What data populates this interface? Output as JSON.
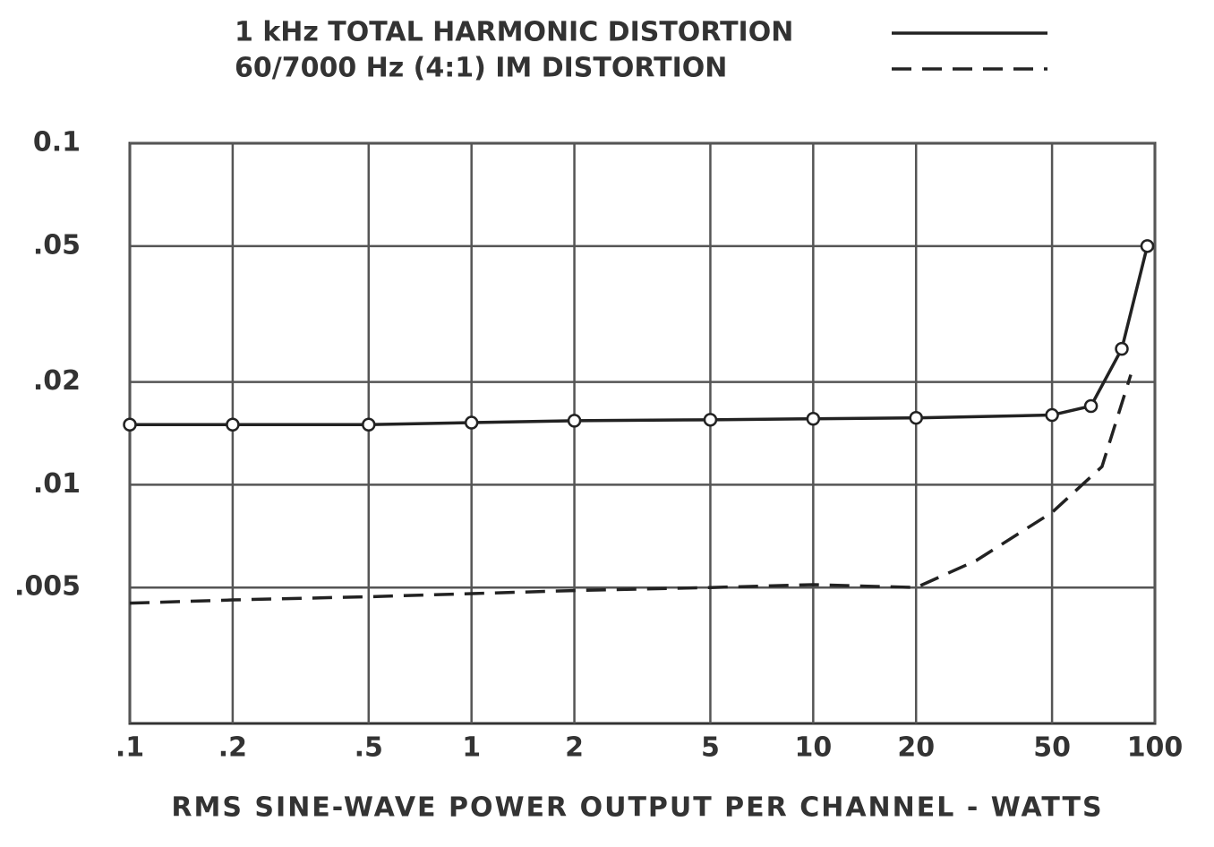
{
  "chart_data": {
    "type": "line",
    "x_label": "RMS SINE-WAVE POWER OUTPUT PER CHANNEL - WATTS",
    "xlog": true,
    "ylog": true,
    "grid": true,
    "xlim": [
      0.1,
      100
    ],
    "ylim": [
      0.002,
      0.1
    ],
    "xticks": [
      {
        "value": 0.1,
        "label": ".1"
      },
      {
        "value": 0.2,
        "label": ".2"
      },
      {
        "value": 0.5,
        "label": ".5"
      },
      1,
      2,
      5,
      10,
      20,
      50,
      100
    ],
    "yticks": [
      0.1,
      {
        "value": 0.05,
        "label": ".05"
      },
      {
        "value": 0.02,
        "label": ".02"
      },
      {
        "value": 0.01,
        "label": ".01"
      },
      {
        "value": 0.005,
        "label": ".005"
      }
    ],
    "legend": "top",
    "series": [
      {
        "name": "1 kHz TOTAL HARMONIC DISTORTION",
        "color": "#222222",
        "style": "solid",
        "marker": true,
        "x": [
          0.1,
          0.2,
          0.5,
          1,
          2,
          5,
          10,
          20,
          50,
          65,
          80,
          95
        ],
        "values": [
          0.015,
          0.015,
          0.015,
          0.0152,
          0.0154,
          0.0155,
          0.0156,
          0.0157,
          0.016,
          0.017,
          0.025,
          0.05
        ]
      },
      {
        "name": "60/7000 Hz (4:1) IM DISTORTION",
        "color": "#222222",
        "style": "dashed",
        "marker": false,
        "x": [
          0.1,
          0.2,
          0.5,
          1,
          2,
          5,
          10,
          20,
          30,
          50,
          70,
          85
        ],
        "values": [
          0.0045,
          0.0046,
          0.0047,
          0.0048,
          0.0049,
          0.005,
          0.0051,
          0.005,
          0.006,
          0.0083,
          0.0113,
          0.021
        ]
      }
    ]
  }
}
